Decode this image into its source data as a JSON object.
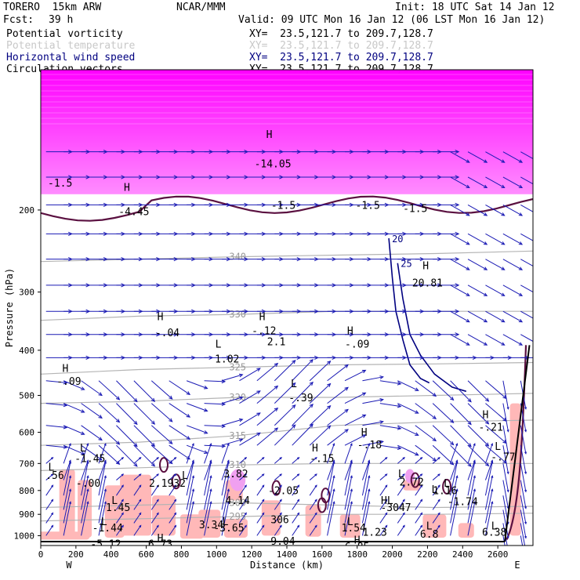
{
  "header": {
    "model": "TORERO  15km ARW",
    "org": "NCAR/MMM",
    "init": "Init: 18 UTC Sat 14 Jan 12",
    "fcst_label": "Fcst:",
    "fcst_value": "39 h",
    "valid": "Valid: 09 UTC Mon 16 Jan 12 (06 LST Mon 16 Jan 12)"
  },
  "legend": [
    {
      "label": "Potential vorticity",
      "xy": "XY=  23.5,121.7 to 209.7,128.7",
      "color": "#000000"
    },
    {
      "label": "Potential temperature",
      "xy": "XY=  23.5,121.7 to 209.7,128.7",
      "color": "#c8c8c8"
    },
    {
      "label": "Horizontal wind speed",
      "xy": "XY=  23.5,121.7 to 209.7,128.7",
      "color": "#000080"
    },
    {
      "label": "Circulation vectors",
      "xy": "XY=  23.5,121.7 to 209.7,128.7",
      "color": "#000000"
    }
  ],
  "chart_data": {
    "type": "cross-section",
    "xlabel": "Distance (km)",
    "ylabel": "Pressure (hPa)",
    "xlim": [
      0,
      2800
    ],
    "ylim": [
      1050,
      100
    ],
    "y_log_scale": true,
    "x_ticks": [
      0,
      200,
      400,
      600,
      800,
      1000,
      1200,
      1400,
      1600,
      1800,
      2000,
      2200,
      2400,
      2600
    ],
    "y_ticks": [
      200,
      300,
      400,
      500,
      600,
      700,
      800,
      900,
      1000
    ],
    "x_end_labels": {
      "left": "W",
      "right": "E"
    },
    "colors": {
      "pv_fill": "#ff00ff",
      "pv_low_fill": "#ffb8b8",
      "theta": "#b4b4b4",
      "wind": "#000080",
      "pv_contour": "#5a1040",
      "arrows": "#1a1ab4"
    },
    "theta_contours": [
      {
        "label": "295",
        "p": [
          930,
          920,
          910,
          900,
          900,
          895
        ]
      },
      {
        "label": "300",
        "p": [
          870,
          860,
          850,
          860,
          870,
          865
        ]
      },
      {
        "label": "310",
        "p": [
          725,
          715,
          705,
          700,
          700,
          700
        ]
      },
      {
        "label": "315",
        "p": [
          640,
          630,
          610,
          580,
          570,
          565
        ]
      },
      {
        "label": "320",
        "p": [
          520,
          515,
          505,
          505,
          500,
          495
        ]
      },
      {
        "label": "325",
        "p": [
          450,
          440,
          435,
          430,
          428,
          425
        ]
      },
      {
        "label": "330",
        "p": [
          345,
          338,
          335,
          330,
          330,
          330
        ]
      },
      {
        "label": "340",
        "p": [
          258,
          255,
          252,
          250,
          248,
          245
        ]
      }
    ],
    "theta_x": [
      0,
      560,
      1120,
      1680,
      2240,
      2800
    ],
    "wind_contours": [
      {
        "label": "20",
        "x": [
          1980,
          2000,
          2020,
          2060,
          2100,
          2160,
          2210
        ],
        "p": [
          230,
          280,
          330,
          380,
          430,
          460,
          470
        ]
      },
      {
        "label": "25",
        "x": [
          2030,
          2060,
          2100,
          2160,
          2240,
          2340,
          2420
        ],
        "p": [
          260,
          310,
          370,
          410,
          450,
          480,
          490
        ]
      }
    ],
    "labels": [
      {
        "t": "H",
        "x": 1300,
        "p": 140
      },
      {
        "t": "-14.05",
        "x": 1320,
        "p": 162
      },
      {
        "t": "-1.5",
        "x": 110,
        "p": 178
      },
      {
        "t": "H",
        "x": 490,
        "p": 182
      },
      {
        "t": "-4.45",
        "x": 530,
        "p": 205
      },
      {
        "t": "-1.5",
        "x": 1380,
        "p": 199
      },
      {
        "t": "-1.5",
        "x": 1860,
        "p": 199
      },
      {
        "t": "-1.5",
        "x": 2130,
        "p": 202
      },
      {
        "t": "H",
        "x": 2190,
        "p": 268
      },
      {
        "t": "20.81",
        "x": 2200,
        "p": 292
      },
      {
        "t": "H",
        "x": 680,
        "p": 345
      },
      {
        "t": "-.04",
        "x": 720,
        "p": 373
      },
      {
        "t": "H",
        "x": 1260,
        "p": 345
      },
      {
        "t": "-.12",
        "x": 1270,
        "p": 370
      },
      {
        "t": "2.1",
        "x": 1340,
        "p": 390
      },
      {
        "t": "H",
        "x": 1760,
        "p": 370
      },
      {
        "t": "-.09",
        "x": 1800,
        "p": 395
      },
      {
        "t": "L",
        "x": 1010,
        "p": 395
      },
      {
        "t": "1.02",
        "x": 1060,
        "p": 425
      },
      {
        "t": "H",
        "x": 140,
        "p": 445
      },
      {
        "t": "-.09",
        "x": 160,
        "p": 475
      },
      {
        "t": "L",
        "x": 1440,
        "p": 480
      },
      {
        "t": "-.39",
        "x": 1480,
        "p": 515
      },
      {
        "t": "H",
        "x": 1840,
        "p": 610
      },
      {
        "t": "-.18",
        "x": 1870,
        "p": 650
      },
      {
        "t": "H",
        "x": 2530,
        "p": 560
      },
      {
        "t": "-.21",
        "x": 2560,
        "p": 595
      },
      {
        "t": "L",
        "x": 240,
        "p": 660
      },
      {
        "t": "-1.45",
        "x": 280,
        "p": 695
      },
      {
        "t": "H",
        "x": 1560,
        "p": 660
      },
      {
        "t": "-.15",
        "x": 1600,
        "p": 695
      },
      {
        "t": "L",
        "x": 2600,
        "p": 655
      },
      {
        "t": "-.77",
        "x": 2630,
        "p": 690
      },
      {
        "t": "L",
        "x": 60,
        "p": 725
      },
      {
        "t": ".56",
        "x": 80,
        "p": 755
      },
      {
        "t": "-.00",
        "x": 270,
        "p": 785
      },
      {
        "t": "L",
        "x": 820,
        "p": 755
      },
      {
        "t": "2.1932",
        "x": 720,
        "p": 785
      },
      {
        "t": "3.82",
        "x": 1110,
        "p": 750
      },
      {
        "t": "L",
        "x": 2050,
        "p": 750
      },
      {
        "t": "2.72",
        "x": 2110,
        "p": 780
      },
      {
        "t": "L",
        "x": 2310,
        "p": 785
      },
      {
        "t": "L",
        "x": 2240,
        "p": 810
      },
      {
        "t": "1.16",
        "x": 2300,
        "p": 815
      },
      {
        "t": "-2.05",
        "x": 1380,
        "p": 815
      },
      {
        "t": "4.14",
        "x": 1120,
        "p": 855
      },
      {
        "t": "HL",
        "x": 1970,
        "p": 855
      },
      {
        "t": "-3047",
        "x": 2020,
        "p": 885
      },
      {
        "t": "-1.74",
        "x": 2400,
        "p": 860
      },
      {
        "t": "L",
        "x": 420,
        "p": 855
      },
      {
        "t": "1.45",
        "x": 440,
        "p": 885
      },
      {
        "t": "306",
        "x": 1360,
        "p": 940
      },
      {
        "t": "L",
        "x": 1050,
        "p": 950
      },
      {
        "t": "3.34",
        "x": 970,
        "p": 965
      },
      {
        "t": "-3.65",
        "x": 1070,
        "p": 980
      },
      {
        "t": "L",
        "x": 360,
        "p": 950
      },
      {
        "t": "-1.44",
        "x": 380,
        "p": 980
      },
      {
        "t": "L",
        "x": 1760,
        "p": 950
      },
      {
        "t": "1.54",
        "x": 1780,
        "p": 980
      },
      {
        "t": "1.23",
        "x": 1900,
        "p": 1000
      },
      {
        "t": "L",
        "x": 2210,
        "p": 970
      },
      {
        "t": "L",
        "x": 2580,
        "p": 970
      },
      {
        "t": "6.38",
        "x": 2580,
        "p": 1000
      },
      {
        "t": "6.8",
        "x": 2210,
        "p": 1010
      },
      {
        "t": "H",
        "x": 680,
        "p": 1030
      },
      {
        "t": "6.73",
        "x": 680,
        "p": 1060
      },
      {
        "t": "-9.04",
        "x": 1360,
        "p": 1045
      },
      {
        "t": "-5.12",
        "x": 370,
        "p": 1060
      },
      {
        "t": "H",
        "x": 1800,
        "p": 1040
      },
      {
        "t": "6.85",
        "x": 1800,
        "p": 1075
      }
    ]
  }
}
